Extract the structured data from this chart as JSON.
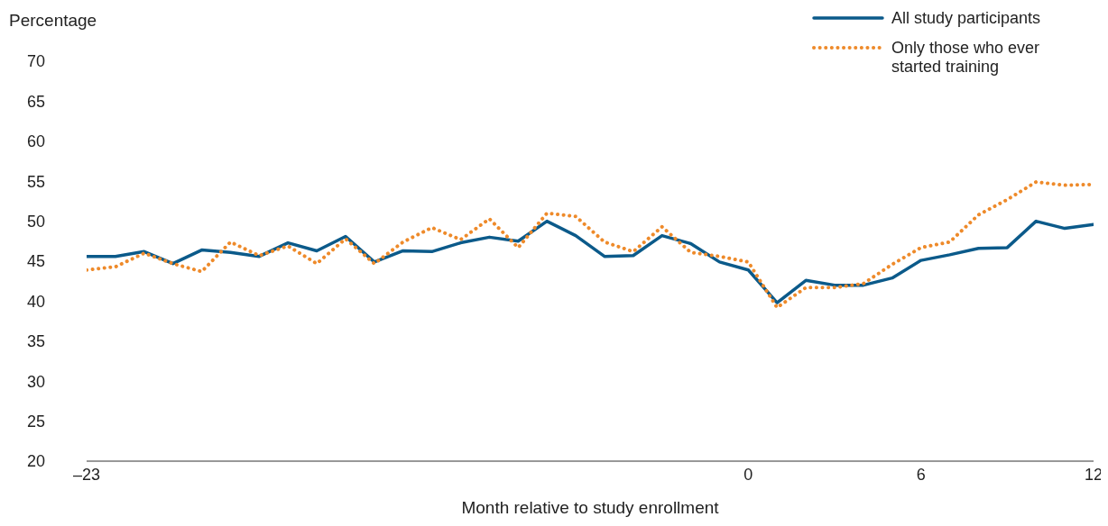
{
  "chart_data": {
    "type": "line",
    "ylabel": "Percentage",
    "xlabel": "Month relative to study enrollment",
    "x": [
      -23,
      -22,
      -21,
      -20,
      -19,
      -18,
      -17,
      -16,
      -15,
      -14,
      -13,
      -12,
      -11,
      -10,
      -9,
      -8,
      -7,
      -6,
      -5,
      -4,
      -3,
      -2,
      -1,
      0,
      1,
      2,
      3,
      4,
      5,
      6,
      7,
      8,
      9,
      10,
      11,
      12
    ],
    "xlim": [
      -23,
      12
    ],
    "xticks": [
      {
        "value": -23,
        "label": "–23"
      },
      0,
      6,
      12
    ],
    "ylim": [
      20,
      70
    ],
    "yticks": [
      20,
      25,
      30,
      35,
      40,
      45,
      50,
      55,
      60,
      65,
      70
    ],
    "legend": "top right",
    "series": [
      {
        "name": "All study participants",
        "color": "#0b5a8a",
        "line_style": "solid",
        "values": [
          45.6,
          45.6,
          46.2,
          44.7,
          46.4,
          46.1,
          45.6,
          47.3,
          46.3,
          48.1,
          44.9,
          46.3,
          46.2,
          47.3,
          48.0,
          47.5,
          50.0,
          48.2,
          45.6,
          45.7,
          48.2,
          47.2,
          44.9,
          43.9,
          39.8,
          42.6,
          42.0,
          42.0,
          42.9,
          45.1,
          45.8,
          46.6,
          46.7,
          50.0,
          49.1,
          49.6
        ]
      },
      {
        "name": "Only those who ever started training",
        "color": "#ee8a2a",
        "line_style": "dotted",
        "values": [
          43.9,
          44.3,
          46.0,
          44.7,
          43.7,
          47.4,
          45.7,
          46.9,
          44.7,
          47.8,
          44.7,
          47.4,
          49.2,
          47.7,
          50.3,
          46.7,
          51.0,
          50.6,
          47.4,
          46.2,
          49.3,
          46.1,
          45.6,
          44.9,
          39.2,
          41.7,
          41.7,
          42.2,
          44.6,
          46.7,
          47.4,
          50.8,
          52.7,
          54.9,
          54.5,
          54.6
        ]
      }
    ]
  }
}
